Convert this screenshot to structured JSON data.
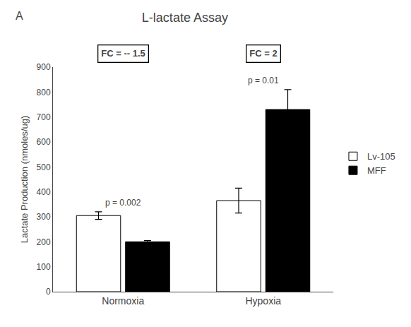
{
  "chart_data": {
    "type": "bar",
    "title": "L-lactate Assay",
    "ylabel": "Lactate Production (nmoles/ug)",
    "categories": [
      "Normoxia",
      "Hypoxia"
    ],
    "series": [
      {
        "name": "Lv-105",
        "color": "white",
        "values": [
          305,
          365
        ],
        "errors": [
          15,
          50
        ]
      },
      {
        "name": "MFF",
        "color": "black",
        "values": [
          200,
          730
        ],
        "errors": [
          5,
          80
        ]
      }
    ],
    "ylim": [
      0,
      900
    ],
    "yticks": [
      0,
      100,
      200,
      300,
      400,
      500,
      600,
      700,
      800,
      900
    ],
    "grid": false,
    "legend": "right",
    "annotations": [
      {
        "text": "p = 0.002",
        "category": "Normoxia"
      },
      {
        "text": "p = 0.01",
        "category": "Hypoxia"
      },
      {
        "text": "FC = -- 1.5",
        "category": "Normoxia"
      },
      {
        "text": "FC = 2",
        "category": "Hypoxia"
      },
      {
        "text": "A"
      }
    ]
  }
}
